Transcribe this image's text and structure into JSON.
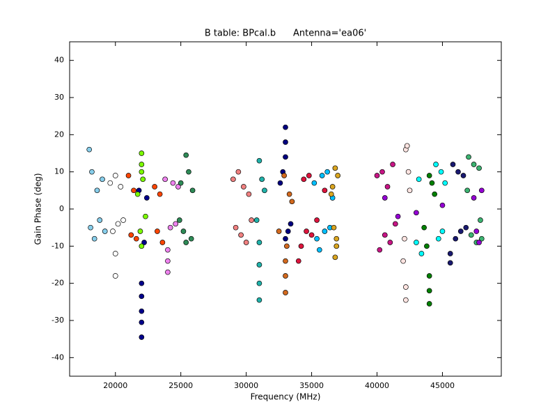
{
  "chart_data": {
    "type": "scatter",
    "title": "B table: BPcal.b      Antenna='ea06'",
    "x_label": "Frequency (MHz)",
    "y_label": "Gain Phase (deg)",
    "xlim": [
      16500,
      49500
    ],
    "ylim": [
      -45,
      45
    ],
    "xticks": [
      20000,
      25000,
      30000,
      35000,
      40000,
      45000
    ],
    "yticks": [
      -40,
      -30,
      -20,
      -10,
      0,
      10,
      20,
      30,
      40
    ],
    "grid": false,
    "series": [
      {
        "color": "#87ceeb",
        "x": [
          18000,
          18100,
          18200,
          18400,
          18600,
          18800,
          19000,
          19200
        ],
        "values": [
          16,
          -5,
          10,
          -8,
          5,
          -3,
          8,
          -6
        ]
      },
      {
        "color": "#ffffff",
        "x": [
          19600,
          19800,
          20000,
          20000,
          20000,
          20200,
          20400,
          20600
        ],
        "values": [
          7,
          -6,
          -18,
          -12,
          9,
          -4,
          6,
          -3
        ]
      },
      {
        "color": "#00008b",
        "x": [
          22000,
          22000,
          22000,
          22000,
          22000,
          21800,
          22200,
          22400
        ],
        "values": [
          -34.5,
          -30.5,
          -27.5,
          -23.5,
          -20,
          5,
          -9,
          3
        ]
      },
      {
        "color": "#7cfc00",
        "x": [
          22000,
          22000,
          21900,
          22100,
          22000,
          21700,
          22300,
          22000
        ],
        "values": [
          15,
          12,
          -6,
          8,
          -10,
          4,
          -2,
          10
        ]
      },
      {
        "color": "#ff4500",
        "x": [
          21000,
          21200,
          21400,
          21600,
          23000,
          23200,
          23400,
          23600
        ],
        "values": [
          9,
          -7,
          5,
          -8,
          6,
          -6,
          4,
          -9
        ]
      },
      {
        "color": "#ee82ee",
        "x": [
          24000,
          24000,
          24000,
          23800,
          24200,
          24400,
          24600,
          24800
        ],
        "values": [
          -17,
          -14,
          -11,
          8,
          -5,
          7,
          -4,
          6
        ]
      },
      {
        "color": "#2e8b57",
        "x": [
          25400,
          25400,
          25600,
          25800,
          25000,
          25200,
          25900,
          24900
        ],
        "values": [
          14.5,
          -9,
          10,
          -8,
          7,
          -6,
          5,
          -3
        ]
      },
      {
        "color": "#f08080",
        "x": [
          29000,
          29200,
          29400,
          29600,
          29800,
          30000,
          30200,
          30400
        ],
        "values": [
          8,
          -5,
          10,
          -7,
          6,
          -9,
          4,
          -3
        ]
      },
      {
        "color": "#20b2aa",
        "x": [
          31000,
          31000,
          31000,
          31000,
          31000,
          31200,
          30800,
          31400
        ],
        "values": [
          -24.5,
          -20,
          -15,
          13,
          -9,
          8,
          -3,
          5
        ]
      },
      {
        "color": "#000080",
        "x": [
          33000,
          33000,
          33000,
          33000,
          32800,
          33200,
          32600,
          33400
        ],
        "values": [
          22,
          18,
          14,
          -8,
          10,
          -6,
          7,
          -4
        ]
      },
      {
        "color": "#d2691e",
        "x": [
          33000,
          33000,
          33000,
          32900,
          33100,
          33300,
          32500,
          33500
        ],
        "values": [
          -22.5,
          -18,
          -14,
          9,
          -10,
          4,
          -6,
          2
        ]
      },
      {
        "color": "#dc143c",
        "x": [
          34000,
          34200,
          34400,
          34600,
          34800,
          35000,
          36000,
          35400
        ],
        "values": [
          -14,
          -10,
          8,
          -6,
          9,
          -7,
          5,
          -3
        ]
      },
      {
        "color": "#00bfff",
        "x": [
          35600,
          35800,
          36000,
          36200,
          35400,
          35200,
          36400,
          36600
        ],
        "values": [
          -11,
          9,
          -6,
          10,
          -8,
          7,
          -5,
          3
        ]
      },
      {
        "color": "#daa520",
        "x": [
          36800,
          36800,
          36900,
          37000,
          36700,
          36600,
          36900,
          36500
        ],
        "values": [
          -13,
          11,
          -8,
          9,
          -5,
          6,
          -10,
          4
        ]
      },
      {
        "color": "#c71585",
        "x": [
          40000,
          40200,
          40400,
          40600,
          40800,
          41000,
          41200,
          41400
        ],
        "values": [
          9,
          -11,
          10,
          -7,
          6,
          -9,
          12,
          -4
        ]
      },
      {
        "color": "#ffe4e1",
        "x": [
          42200,
          42200,
          42200,
          42300,
          42100,
          42400,
          42000,
          42500
        ],
        "values": [
          -24.5,
          -21,
          16,
          17,
          -8,
          10,
          -14,
          5
        ]
      },
      {
        "color": "#008000",
        "x": [
          44000,
          44000,
          44000,
          44000,
          43800,
          44200,
          43600,
          44400
        ],
        "values": [
          -25.5,
          -22,
          -18,
          9,
          -10,
          7,
          -5,
          4
        ]
      },
      {
        "color": "#00ffff",
        "x": [
          44500,
          44700,
          44900,
          45000,
          45200,
          43000,
          43200,
          43400
        ],
        "values": [
          12,
          -8,
          10,
          -6,
          7,
          -9,
          8,
          -12
        ]
      },
      {
        "color": "#191970",
        "x": [
          45600,
          45600,
          45800,
          46000,
          46200,
          46400,
          46600,
          46800
        ],
        "values": [
          -14.5,
          -12,
          12,
          -8,
          10,
          -6,
          9,
          -5
        ]
      },
      {
        "color": "#3cb371",
        "x": [
          47000,
          47200,
          47400,
          47600,
          47800,
          48000,
          46900,
          47900
        ],
        "values": [
          14,
          -7,
          12,
          -9,
          11,
          -8,
          5,
          -3
        ]
      },
      {
        "color": "#9400d3",
        "x": [
          47800,
          48000,
          47600,
          47400,
          40600,
          41600,
          45000,
          43000
        ],
        "values": [
          -9,
          5,
          -6,
          3,
          3,
          -2,
          1,
          -1
        ]
      }
    ]
  }
}
